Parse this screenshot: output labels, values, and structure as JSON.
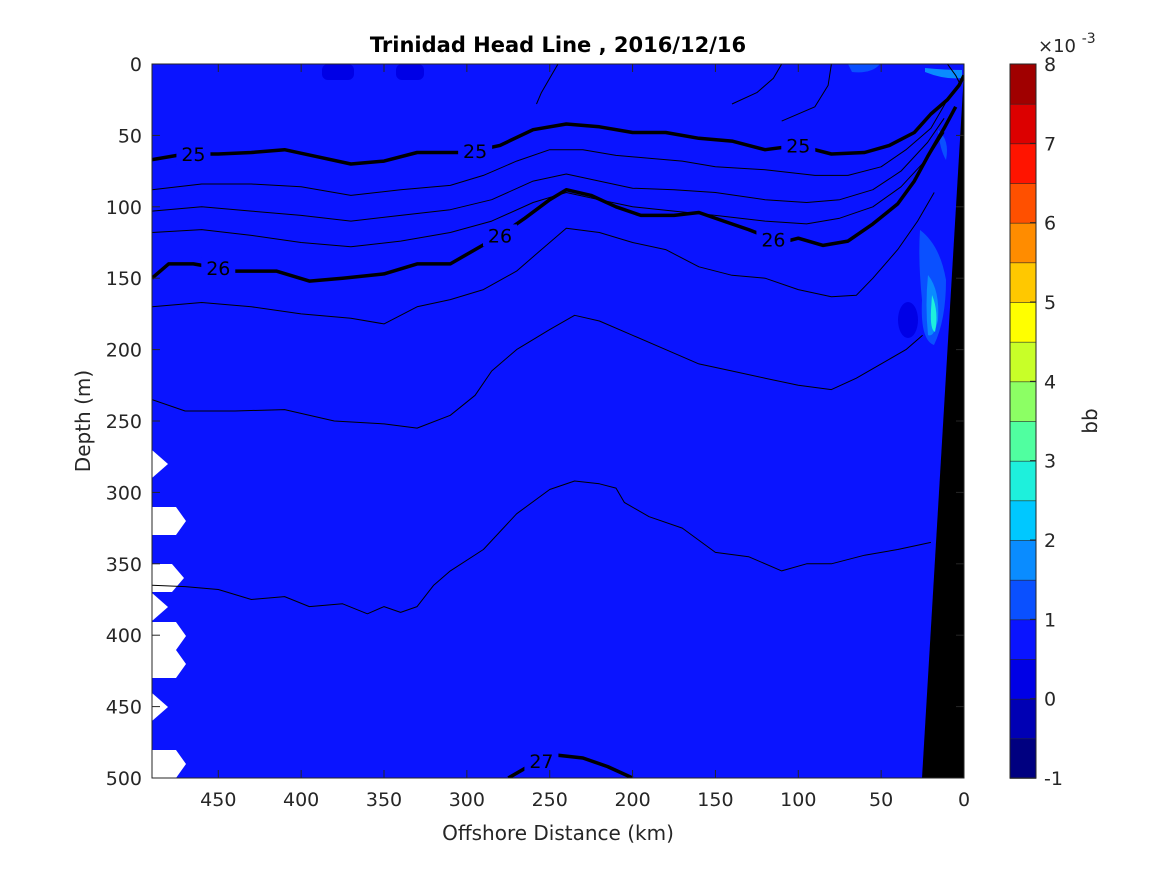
{
  "chart_data": {
    "type": "heatmap",
    "title": "Trinidad Head Line , 2016/12/16",
    "xlabel": "Offshore Distance (km)",
    "ylabel": "Depth (m)",
    "xlim": [
      490,
      0
    ],
    "ylim": [
      0,
      500
    ],
    "x_reversed": true,
    "y_reversed": true,
    "xticks": [
      "450",
      "400",
      "350",
      "300",
      "250",
      "200",
      "150",
      "100",
      "50",
      "0"
    ],
    "yticks": [
      "0",
      "50",
      "100",
      "150",
      "200",
      "250",
      "300",
      "350",
      "400",
      "450",
      "500"
    ],
    "field_dominant_value": 0.0003,
    "colorbar": {
      "label": "bb",
      "multiplier": "×10-3",
      "multiplier_base": "×10",
      "multiplier_exp": "-3",
      "range": [
        -1,
        8
      ],
      "ticks": [
        "-1",
        "0",
        "1",
        "2",
        "3",
        "4",
        "5",
        "6",
        "7",
        "8"
      ],
      "colors": [
        "#000080",
        "#0000b4",
        "#0000e6",
        "#0a14ff",
        "#0a50ff",
        "#0a8cff",
        "#00c8ff",
        "#1ef0dc",
        "#50ffa0",
        "#8cff64",
        "#c8ff28",
        "#ffff00",
        "#ffc800",
        "#ff8c00",
        "#ff5000",
        "#ff1400",
        "#dc0000",
        "#a00000"
      ]
    },
    "contour_lines": [
      {
        "level": "25",
        "bold": true,
        "label_x": [
          465,
          295,
          100
        ],
        "points": [
          [
            490,
            67
          ],
          [
            470,
            63
          ],
          [
            450,
            63
          ],
          [
            430,
            62
          ],
          [
            410,
            60
          ],
          [
            390,
            65
          ],
          [
            370,
            70
          ],
          [
            350,
            68
          ],
          [
            330,
            62
          ],
          [
            300,
            62
          ],
          [
            280,
            57
          ],
          [
            260,
            46
          ],
          [
            240,
            42
          ],
          [
            220,
            44
          ],
          [
            200,
            48
          ],
          [
            180,
            48
          ],
          [
            160,
            52
          ],
          [
            140,
            54
          ],
          [
            120,
            60
          ],
          [
            100,
            57
          ],
          [
            80,
            63
          ],
          [
            60,
            62
          ],
          [
            45,
            57
          ],
          [
            30,
            48
          ],
          [
            20,
            35
          ],
          [
            10,
            25
          ],
          [
            3,
            15
          ],
          [
            0,
            8
          ]
        ]
      },
      {
        "level": "26",
        "bold": true,
        "label_x": [
          450,
          280,
          115
        ],
        "points": [
          [
            490,
            150
          ],
          [
            480,
            140
          ],
          [
            465,
            140
          ],
          [
            440,
            145
          ],
          [
            415,
            145
          ],
          [
            395,
            152
          ],
          [
            375,
            150
          ],
          [
            350,
            147
          ],
          [
            330,
            140
          ],
          [
            310,
            140
          ],
          [
            295,
            130
          ],
          [
            280,
            120
          ],
          [
            265,
            108
          ],
          [
            250,
            95
          ],
          [
            240,
            88
          ],
          [
            225,
            92
          ],
          [
            210,
            100
          ],
          [
            195,
            106
          ],
          [
            175,
            106
          ],
          [
            160,
            104
          ],
          [
            145,
            110
          ],
          [
            130,
            116
          ],
          [
            110,
            125
          ],
          [
            100,
            122
          ],
          [
            85,
            127
          ],
          [
            70,
            124
          ],
          [
            55,
            112
          ],
          [
            40,
            98
          ],
          [
            30,
            82
          ],
          [
            22,
            65
          ],
          [
            12,
            45
          ],
          [
            5,
            30
          ]
        ]
      },
      {
        "level": "27",
        "bold": true,
        "label_x": [
          255
        ],
        "points": [
          [
            275,
            500
          ],
          [
            260,
            490
          ],
          [
            245,
            484
          ],
          [
            230,
            486
          ],
          [
            215,
            492
          ],
          [
            200,
            500
          ]
        ]
      },
      {
        "level": "",
        "bold": false,
        "points": [
          [
            490,
            88
          ],
          [
            460,
            84
          ],
          [
            430,
            84
          ],
          [
            400,
            86
          ],
          [
            370,
            92
          ],
          [
            340,
            88
          ],
          [
            310,
            85
          ],
          [
            290,
            78
          ],
          [
            270,
            68
          ],
          [
            250,
            60
          ],
          [
            230,
            60
          ],
          [
            210,
            64
          ],
          [
            190,
            66
          ],
          [
            170,
            68
          ],
          [
            150,
            72
          ],
          [
            120,
            74
          ],
          [
            90,
            78
          ],
          [
            70,
            78
          ],
          [
            50,
            72
          ],
          [
            35,
            60
          ],
          [
            20,
            45
          ],
          [
            10,
            25
          ]
        ]
      },
      {
        "level": "",
        "bold": false,
        "points": [
          [
            490,
            103
          ],
          [
            460,
            100
          ],
          [
            430,
            103
          ],
          [
            400,
            106
          ],
          [
            370,
            110
          ],
          [
            340,
            106
          ],
          [
            310,
            102
          ],
          [
            285,
            95
          ],
          [
            260,
            82
          ],
          [
            240,
            77
          ],
          [
            220,
            82
          ],
          [
            200,
            87
          ],
          [
            175,
            88
          ],
          [
            150,
            90
          ],
          [
            120,
            95
          ],
          [
            95,
            97
          ],
          [
            75,
            95
          ],
          [
            55,
            88
          ],
          [
            38,
            75
          ],
          [
            22,
            55
          ],
          [
            12,
            38
          ]
        ]
      },
      {
        "level": "",
        "bold": false,
        "points": [
          [
            490,
            118
          ],
          [
            460,
            116
          ],
          [
            430,
            120
          ],
          [
            400,
            125
          ],
          [
            370,
            128
          ],
          [
            340,
            124
          ],
          [
            310,
            118
          ],
          [
            285,
            110
          ],
          [
            260,
            97
          ],
          [
            240,
            90
          ],
          [
            220,
            95
          ],
          [
            200,
            100
          ],
          [
            175,
            103
          ],
          [
            150,
            106
          ],
          [
            120,
            110
          ],
          [
            95,
            112
          ],
          [
            75,
            108
          ],
          [
            55,
            100
          ],
          [
            38,
            86
          ],
          [
            22,
            66
          ],
          [
            12,
            48
          ]
        ]
      },
      {
        "level": "",
        "bold": false,
        "points": [
          [
            490,
            170
          ],
          [
            460,
            167
          ],
          [
            430,
            170
          ],
          [
            400,
            175
          ],
          [
            370,
            178
          ],
          [
            350,
            182
          ],
          [
            330,
            170
          ],
          [
            310,
            165
          ],
          [
            290,
            158
          ],
          [
            270,
            145
          ],
          [
            255,
            130
          ],
          [
            240,
            115
          ],
          [
            220,
            118
          ],
          [
            200,
            125
          ],
          [
            180,
            130
          ],
          [
            160,
            142
          ],
          [
            140,
            148
          ],
          [
            120,
            150
          ],
          [
            100,
            158
          ],
          [
            80,
            163
          ],
          [
            65,
            162
          ],
          [
            55,
            150
          ],
          [
            40,
            130
          ],
          [
            28,
            110
          ],
          [
            18,
            90
          ]
        ]
      },
      {
        "level": "",
        "bold": false,
        "points": [
          [
            490,
            235
          ],
          [
            470,
            243
          ],
          [
            440,
            243
          ],
          [
            410,
            242
          ],
          [
            380,
            250
          ],
          [
            350,
            252
          ],
          [
            330,
            255
          ],
          [
            310,
            246
          ],
          [
            295,
            232
          ],
          [
            285,
            215
          ],
          [
            270,
            200
          ],
          [
            250,
            186
          ],
          [
            235,
            176
          ],
          [
            220,
            180
          ],
          [
            200,
            190
          ],
          [
            180,
            200
          ],
          [
            160,
            210
          ],
          [
            140,
            215
          ],
          [
            120,
            220
          ],
          [
            100,
            225
          ],
          [
            80,
            228
          ],
          [
            65,
            220
          ],
          [
            50,
            210
          ],
          [
            35,
            200
          ],
          [
            25,
            190
          ]
        ]
      },
      {
        "level": "",
        "bold": false,
        "points": [
          [
            490,
            365
          ],
          [
            470,
            366
          ],
          [
            450,
            368
          ],
          [
            430,
            375
          ],
          [
            410,
            373
          ],
          [
            395,
            380
          ],
          [
            375,
            378
          ],
          [
            360,
            385
          ],
          [
            350,
            380
          ],
          [
            340,
            384
          ],
          [
            330,
            380
          ],
          [
            320,
            365
          ],
          [
            310,
            355
          ],
          [
            290,
            340
          ],
          [
            270,
            315
          ],
          [
            250,
            298
          ],
          [
            235,
            292
          ],
          [
            220,
            294
          ],
          [
            210,
            297
          ],
          [
            205,
            307
          ],
          [
            190,
            317
          ],
          [
            170,
            325
          ],
          [
            150,
            342
          ],
          [
            130,
            345
          ],
          [
            110,
            355
          ],
          [
            95,
            350
          ],
          [
            80,
            350
          ],
          [
            60,
            344
          ],
          [
            40,
            340
          ],
          [
            28,
            337
          ],
          [
            20,
            335
          ]
        ]
      },
      {
        "level": "",
        "bold": false,
        "points": [
          [
            245,
            0
          ],
          [
            250,
            10
          ],
          [
            255,
            20
          ],
          [
            258,
            28
          ]
        ]
      },
      {
        "level": "",
        "bold": false,
        "points": [
          [
            110,
            0
          ],
          [
            115,
            10
          ],
          [
            125,
            20
          ],
          [
            140,
            28
          ]
        ]
      },
      {
        "level": "",
        "bold": false,
        "points": [
          [
            80,
            0
          ],
          [
            82,
            15
          ],
          [
            90,
            30
          ],
          [
            110,
            40
          ]
        ]
      },
      {
        "level": "",
        "bold": false,
        "points": [
          [
            10,
            0
          ],
          [
            5,
            8
          ],
          [
            2,
            15
          ]
        ]
      }
    ]
  }
}
